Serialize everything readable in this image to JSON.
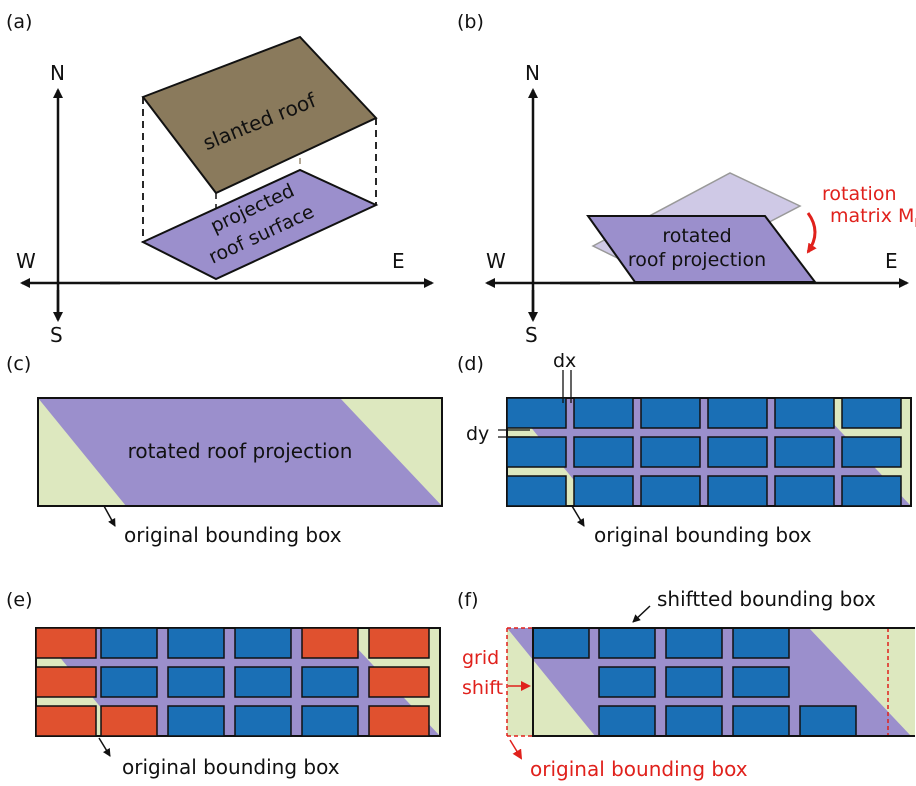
{
  "panels": {
    "a": {
      "label": "(a)",
      "compass": {
        "n": "N",
        "s": "S",
        "e": "E",
        "w": "W"
      },
      "roof_label": "slanted roof",
      "proj_line1": "projected",
      "proj_line2": "roof surface"
    },
    "b": {
      "label": "(b)",
      "compass": {
        "n": "N",
        "s": "S",
        "e": "E",
        "w": "W"
      },
      "rot_line1": "rotated",
      "rot_line2": "roof projection",
      "matrix_line1": "rotation",
      "matrix_line2": "matrix M",
      "matrix_sub": "R"
    },
    "c": {
      "label": "(c)",
      "center_text": "rotated roof projection",
      "caption": "original bounding box"
    },
    "d": {
      "label": "(d)",
      "dx": "dx",
      "dy": "dy",
      "caption": "original bounding box"
    },
    "e": {
      "label": "(e)",
      "caption": "original bounding box"
    },
    "f": {
      "label": "(f)",
      "top_caption": "shiftted bounding box",
      "grid_line1": "grid",
      "grid_line2": "shift",
      "caption": "original bounding box"
    }
  },
  "colors": {
    "roof": "#8a7a5c",
    "projection": "#9b8fcc",
    "projection_light": "#cfc9e6",
    "box_fill": "#dde8bf",
    "panel_blue": "#1a6fb5",
    "panel_red": "#e0512f",
    "accent_red": "#e0211c"
  }
}
